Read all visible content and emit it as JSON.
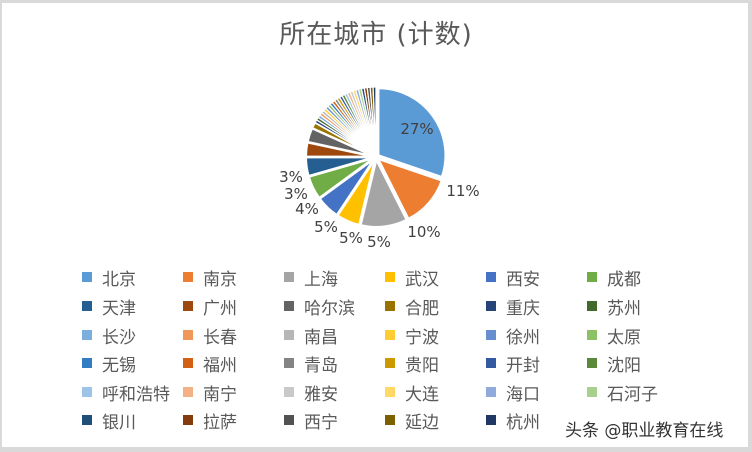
{
  "chart_data": {
    "type": "pie",
    "title": "所在城市 (计数)",
    "legend_position": "bottom",
    "categories": [
      "北京",
      "南京",
      "上海",
      "武汉",
      "西安",
      "成都",
      "天津",
      "广州",
      "哈尔滨",
      "合肥",
      "重庆",
      "苏州",
      "长沙",
      "长春",
      "南昌",
      "宁波",
      "徐州",
      "太原",
      "无锡",
      "福州",
      "青岛",
      "贵阳",
      "开封",
      "沈阳",
      "呼和浩特",
      "南宁",
      "雅安",
      "大连",
      "海口",
      "石河子",
      "银川",
      "拉萨",
      "西宁",
      "延边",
      "杭州"
    ],
    "values": [
      27,
      11,
      10,
      5,
      5,
      5,
      4,
      3,
      3,
      1.3,
      0.6,
      0.6,
      0.6,
      0.6,
      0.6,
      0.6,
      0.6,
      0.6,
      0.6,
      0.6,
      0.6,
      0.6,
      0.6,
      0.6,
      0.6,
      0.6,
      0.6,
      0.6,
      0.6,
      0.6,
      0.6,
      0.6,
      0.6,
      0.6,
      0.6
    ],
    "data_labels": [
      "27%",
      "11%",
      "10%",
      "5%",
      "5%",
      "5%",
      "4%",
      "3%",
      "3%",
      "",
      "",
      "",
      "",
      "",
      "",
      "",
      "",
      "",
      "",
      "",
      "",
      "",
      "",
      "",
      "",
      "",
      "",
      "",
      "",
      "",
      "",
      "",
      "",
      "",
      ""
    ],
    "colors": [
      "#5B9BD5",
      "#ED7D31",
      "#A5A5A5",
      "#FFC000",
      "#4472C4",
      "#70AD47",
      "#255E91",
      "#9E480E",
      "#636363",
      "#997300",
      "#264478",
      "#43682B",
      "#7CAFDD",
      "#F1975A",
      "#B7B7B7",
      "#FFCD33",
      "#698ED0",
      "#8CC168",
      "#327DC2",
      "#D26012",
      "#848484",
      "#CC9A00",
      "#335AA1",
      "#5A8A39",
      "#9DC3E6",
      "#F4B183",
      "#C9C9C9",
      "#FFD966",
      "#8FAADC",
      "#A9D18E",
      "#1F4E79",
      "#843C0C",
      "#525252",
      "#7F6000",
      "#203864"
    ]
  },
  "legend": {
    "items": [
      {
        "label": "北京"
      },
      {
        "label": "南京"
      },
      {
        "label": "上海"
      },
      {
        "label": "武汉"
      },
      {
        "label": "西安"
      },
      {
        "label": "成都"
      },
      {
        "label": "天津"
      },
      {
        "label": "广州"
      },
      {
        "label": "哈尔滨"
      },
      {
        "label": "合肥"
      },
      {
        "label": "重庆"
      },
      {
        "label": "苏州"
      },
      {
        "label": "长沙"
      },
      {
        "label": "长春"
      },
      {
        "label": "南昌"
      },
      {
        "label": "宁波"
      },
      {
        "label": "徐州"
      },
      {
        "label": "太原"
      },
      {
        "label": "无锡"
      },
      {
        "label": "福州"
      },
      {
        "label": "青岛"
      },
      {
        "label": "贵阳"
      },
      {
        "label": "开封"
      },
      {
        "label": "沈阳"
      },
      {
        "label": "呼和浩特"
      },
      {
        "label": "南宁"
      },
      {
        "label": "雅安"
      },
      {
        "label": "大连"
      },
      {
        "label": "海口"
      },
      {
        "label": "石河子"
      },
      {
        "label": "银川"
      },
      {
        "label": "拉萨"
      },
      {
        "label": "西宁"
      },
      {
        "label": "延边"
      },
      {
        "label": "杭州"
      }
    ]
  },
  "watermark": "头条 @职业教育在线"
}
